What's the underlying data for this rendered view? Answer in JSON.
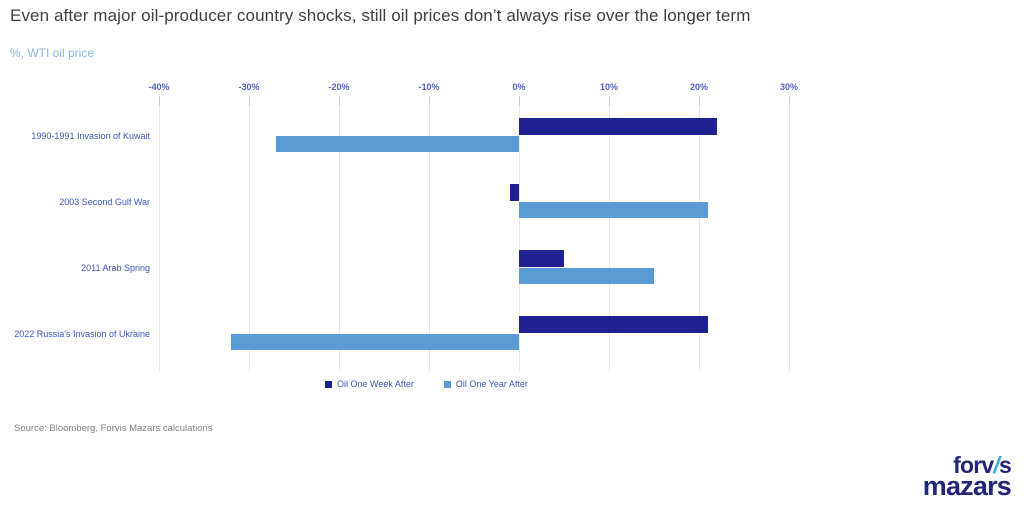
{
  "title": "Even after major oil-producer country shocks, still oil prices don’t always rise over the longer term",
  "subtitle": "%, WTI oil price",
  "source": "Source: Bloomberg, Forvis Mazars calculations",
  "logo": {
    "line1_prefix": "forv",
    "line1_slash": "/",
    "line1_suffix": "s",
    "line2": "mazars"
  },
  "colors": {
    "week_after_bar": "#1f2191",
    "year_after_bar": "#5b9bd5",
    "axis_text": "#555fc6",
    "category_text": "#3e55bb",
    "subtitle_text": "#8ab5e1",
    "gridline": "#e4e7f4",
    "title_text": "#3f3f3f",
    "source_text": "#808080",
    "logo_navy": "#232577",
    "logo_light_blue": "#3ba9dc"
  },
  "chart_data": {
    "type": "bar",
    "orientation": "horizontal",
    "title": "Even after major oil-producer country shocks, still oil prices don’t always rise over the longer term",
    "xlabel": "%, WTI oil price",
    "categories": [
      "1990-1991 Invasion of Kuwait",
      "2003 Second Gulf War",
      "2011 Arab Spring",
      "2022 Russia's Invasion of Ukraine"
    ],
    "series": [
      {
        "name": "Oil One Week After",
        "color": "#1f2191",
        "values": [
          22,
          -1,
          5,
          21
        ]
      },
      {
        "name": "Oil One Year After",
        "color": "#5b9bd5",
        "values": [
          -27,
          21,
          15,
          -32
        ]
      }
    ],
    "ticks": [
      {
        "value": -40,
        "label": "-40%"
      },
      {
        "value": -30,
        "label": "-30%"
      },
      {
        "value": -20,
        "label": "-20%"
      },
      {
        "value": -10,
        "label": "-10%"
      },
      {
        "value": 0,
        "label": "0%"
      },
      {
        "value": 10,
        "label": "10%"
      },
      {
        "value": 20,
        "label": "20%"
      },
      {
        "value": 30,
        "label": "30%"
      }
    ],
    "xlim": [
      -40,
      35
    ],
    "grid": true,
    "legend_position": "bottom"
  }
}
